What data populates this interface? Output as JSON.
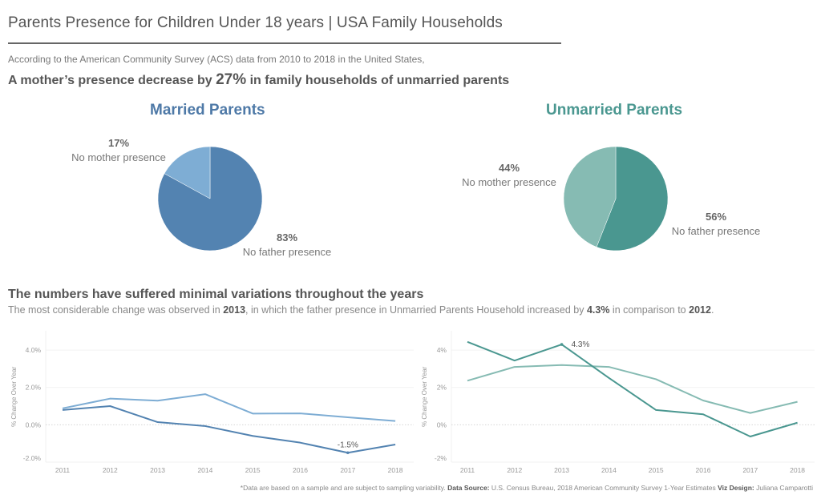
{
  "header": {
    "title": "Parents Presence for Children Under 18 years | USA Family Households",
    "intro": "According to the American Community Survey (ACS) data from 2010 to 2018 in the United States,",
    "headline_pre": "A mother’s presence decrease by ",
    "headline_big": "27%",
    "headline_post": " in family households of unmarried parents"
  },
  "section": {
    "title": "The numbers have suffered minimal variations throughout the years",
    "sub_1": "The most considerable change was observed in ",
    "sub_b1": "2013",
    "sub_2": ", in which the father presence in Unmarried Parents Household increased by ",
    "sub_b2": "4.3%",
    "sub_3": " in comparison to ",
    "sub_b3": "2012",
    "sub_4": "."
  },
  "footer": {
    "note": "*Data are based on a sample and are subject to sampling variability. ",
    "source_label": "Data Source:",
    "source": " U.S. Census Bureau, 2018 American Community Survey 1-Year Estimates ",
    "design_label": "Viz Design:",
    "design": " Juliana Camparotti"
  },
  "colors": {
    "married_dark": "#5383b1",
    "married_light": "#7eadd4",
    "married_title": "#4e79a7",
    "unmarried_dark": "#4a9790",
    "unmarried_light": "#86bbb3",
    "unmarried_title": "#4a9790"
  },
  "chart_data": [
    {
      "type": "pie",
      "title": "Married Parents",
      "slices": [
        {
          "label": "No father presence",
          "value": 83,
          "display": "83%"
        },
        {
          "label": "No mother presence",
          "value": 17,
          "display": "17%"
        }
      ]
    },
    {
      "type": "pie",
      "title": "Unmarried Parents",
      "slices": [
        {
          "label": "No father presence",
          "value": 56,
          "display": "56%"
        },
        {
          "label": "No mother presence",
          "value": 44,
          "display": "44%"
        }
      ]
    },
    {
      "type": "line",
      "title": "Married Parents % Change Over Year",
      "ylabel": "% Change Over Year",
      "xlabel": "",
      "x": [
        "2011",
        "2012",
        "2013",
        "2014",
        "2015",
        "2016",
        "2017",
        "2018"
      ],
      "yticks": [
        "4.0%",
        "2.0%",
        "0.0%",
        "-2.0%"
      ],
      "ytick_values": [
        4,
        2,
        0,
        -2
      ],
      "ylim": [
        -2.2,
        5.1
      ],
      "series": [
        {
          "name": "No mother presence",
          "shade": "light",
          "values": [
            0.88,
            1.4,
            1.29,
            1.64,
            0.6,
            0.61,
            0.4,
            0.2
          ]
        },
        {
          "name": "No father presence",
          "shade": "dark",
          "values": [
            0.79,
            1.0,
            0.14,
            -0.07,
            -0.6,
            -0.96,
            -1.5,
            -1.06
          ]
        }
      ],
      "annotations": [
        {
          "series": 1,
          "x": "2017",
          "text": "-1.5%"
        }
      ]
    },
    {
      "type": "line",
      "title": "Unmarried Parents % Change Over Year",
      "ylabel": "% Change Over Year",
      "xlabel": "",
      "x": [
        "2011",
        "2012",
        "2013",
        "2014",
        "2015",
        "2016",
        "2017",
        "2018"
      ],
      "yticks": [
        "4%",
        "2%",
        "0%",
        "-2%"
      ],
      "ytick_values": [
        4,
        2,
        0,
        -2
      ],
      "ylim": [
        -2.2,
        5.1
      ],
      "series": [
        {
          "name": "No mother presence",
          "shade": "light",
          "values": [
            2.36,
            3.1,
            3.2,
            3.1,
            2.44,
            1.3,
            0.63,
            1.23
          ]
        },
        {
          "name": "No father presence",
          "shade": "dark",
          "values": [
            4.44,
            3.44,
            4.3,
            2.51,
            0.79,
            0.56,
            -0.63,
            0.11
          ]
        }
      ],
      "annotations": [
        {
          "series": 1,
          "x": "2013",
          "text": "4.3%"
        }
      ]
    }
  ]
}
